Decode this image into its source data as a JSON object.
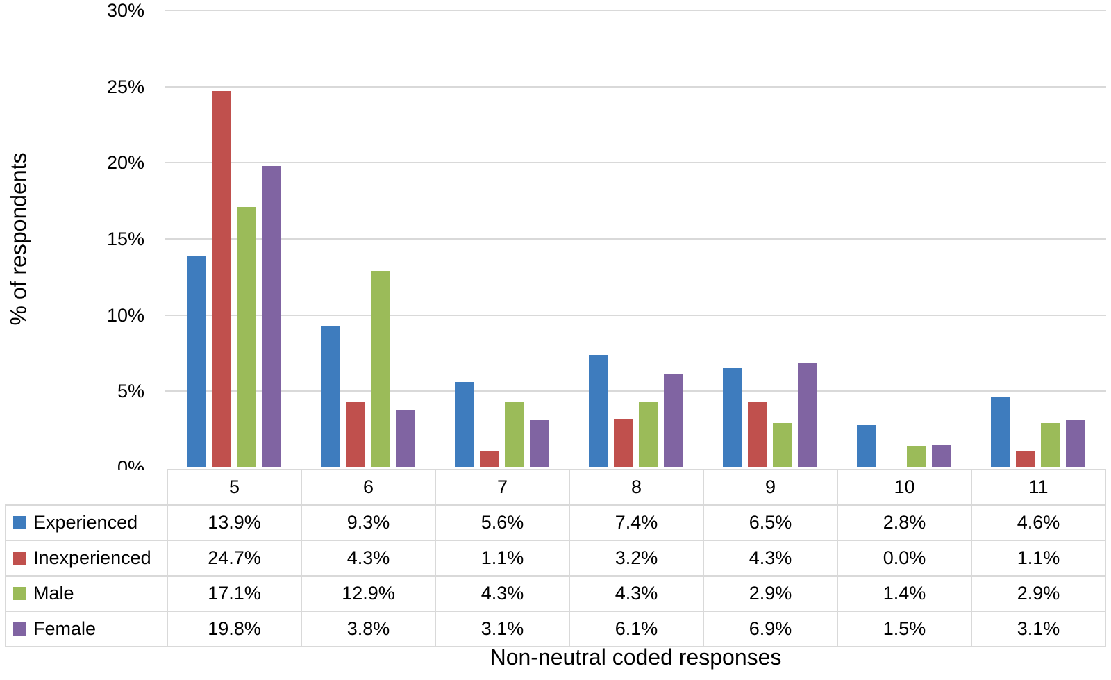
{
  "colors": {
    "background": "#ffffff",
    "gridline": "#d9d9d9",
    "table_border": "#d9d9d9",
    "text": "#000000"
  },
  "chart_data": {
    "type": "bar",
    "title": "",
    "xlabel": "Non-neutral coded responses",
    "ylabel": "% of respondents",
    "categories": [
      "5",
      "6",
      "7",
      "8",
      "9",
      "10",
      "11"
    ],
    "ylim": [
      0,
      30
    ],
    "grid": true,
    "legend_position": "data-table-left",
    "y_ticks": [
      {
        "value": 30,
        "label": "30%"
      },
      {
        "value": 25,
        "label": "25%"
      },
      {
        "value": 20,
        "label": "20%"
      },
      {
        "value": 15,
        "label": "15%"
      },
      {
        "value": 10,
        "label": "10%"
      },
      {
        "value": 5,
        "label": "5%"
      },
      {
        "value": 0,
        "label": "0%"
      }
    ],
    "series": [
      {
        "name": "Experienced",
        "color": "#3e7cbe",
        "values": [
          13.9,
          9.3,
          5.6,
          7.4,
          6.5,
          2.8,
          4.6
        ],
        "labels": [
          "13.9%",
          "9.3%",
          "5.6%",
          "7.4%",
          "6.5%",
          "2.8%",
          "4.6%"
        ]
      },
      {
        "name": "Inexperienced",
        "color": "#c0504d",
        "values": [
          24.7,
          4.3,
          1.1,
          3.2,
          4.3,
          0.0,
          1.1
        ],
        "labels": [
          "24.7%",
          "4.3%",
          "1.1%",
          "3.2%",
          "4.3%",
          "0.0%",
          "1.1%"
        ]
      },
      {
        "name": "Male",
        "color": "#9bbb59",
        "values": [
          17.1,
          12.9,
          4.3,
          4.3,
          2.9,
          1.4,
          2.9
        ],
        "labels": [
          "17.1%",
          "12.9%",
          "4.3%",
          "4.3%",
          "2.9%",
          "1.4%",
          "2.9%"
        ]
      },
      {
        "name": "Female",
        "color": "#8064a2",
        "values": [
          19.8,
          3.8,
          3.1,
          6.1,
          6.9,
          1.5,
          3.1
        ],
        "labels": [
          "19.8%",
          "3.8%",
          "3.1%",
          "6.1%",
          "6.9%",
          "1.5%",
          "3.1%"
        ]
      }
    ]
  }
}
